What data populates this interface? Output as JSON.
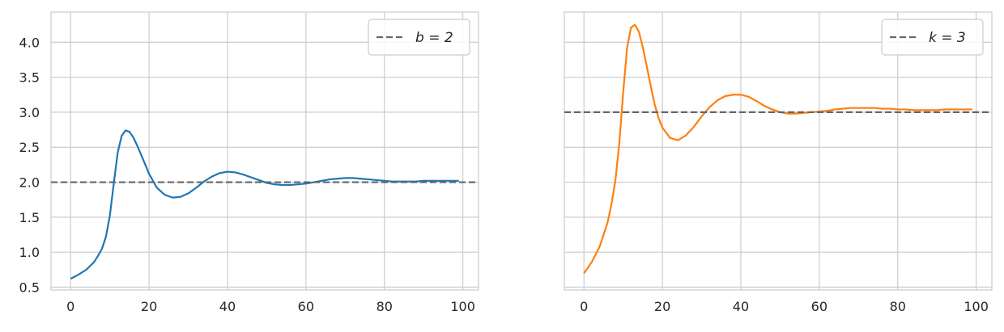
{
  "chart_data": [
    {
      "type": "line",
      "title": "",
      "xlabel": "",
      "ylabel": "",
      "xlim": [
        -5,
        104
      ],
      "ylim": [
        0.46,
        4.43
      ],
      "xticks": [
        0,
        20,
        40,
        60,
        80,
        100
      ],
      "yticks": [
        0.5,
        1.0,
        1.5,
        2.0,
        2.5,
        3.0,
        3.5,
        4.0
      ],
      "xtick_labels": [
        "0",
        "20",
        "40",
        "60",
        "80",
        "100"
      ],
      "ytick_labels": [
        "0.5",
        "1.0",
        "1.5",
        "2.0",
        "2.5",
        "3.0",
        "3.5",
        "4.0"
      ],
      "grid": true,
      "legend_position": "top-right",
      "series": [
        {
          "color": "#1f77b4",
          "x": [
            0,
            2,
            4,
            6,
            7,
            8,
            9,
            10,
            11,
            12,
            13,
            14,
            15,
            16,
            17,
            18,
            20,
            22,
            24,
            26,
            28,
            30,
            32,
            34,
            36,
            38,
            40,
            42,
            44,
            46,
            48,
            50,
            52,
            54,
            56,
            58,
            60,
            62,
            64,
            66,
            68,
            70,
            72,
            74,
            76,
            78,
            80,
            82,
            84,
            86,
            88,
            90,
            92,
            94,
            96,
            99
          ],
          "y": [
            0.62,
            0.68,
            0.75,
            0.86,
            0.95,
            1.05,
            1.22,
            1.52,
            1.98,
            2.42,
            2.66,
            2.74,
            2.72,
            2.64,
            2.52,
            2.39,
            2.12,
            1.92,
            1.82,
            1.78,
            1.79,
            1.84,
            1.92,
            2.01,
            2.08,
            2.13,
            2.15,
            2.14,
            2.11,
            2.07,
            2.03,
            1.99,
            1.97,
            1.96,
            1.96,
            1.97,
            1.98,
            2.0,
            2.02,
            2.04,
            2.05,
            2.06,
            2.06,
            2.05,
            2.04,
            2.03,
            2.02,
            2.01,
            2.01,
            2.01,
            2.01,
            2.02,
            2.02,
            2.02,
            2.02,
            2.02
          ]
        },
        {
          "name": "$b = 2$",
          "display_name": "b = 2",
          "style": "dashed",
          "color": "#666666",
          "x": [
            -5,
            104
          ],
          "y": [
            2.0,
            2.0
          ]
        }
      ],
      "legend": [
        {
          "label": "b = 2",
          "style": "dashed",
          "color": "#666666"
        }
      ]
    },
    {
      "type": "line",
      "title": "",
      "xlabel": "",
      "ylabel": "",
      "xlim": [
        -5,
        104
      ],
      "ylim": [
        0.46,
        4.43
      ],
      "xticks": [
        0,
        20,
        40,
        60,
        80,
        100
      ],
      "yticks": [
        0.5,
        1.0,
        1.5,
        2.0,
        2.5,
        3.0,
        3.5,
        4.0
      ],
      "xtick_labels": [
        "0",
        "20",
        "40",
        "60",
        "80",
        "100"
      ],
      "ytick_labels": [],
      "shared_y": true,
      "grid": true,
      "legend_position": "top-right",
      "series": [
        {
          "color": "#ff7f0e",
          "x": [
            0,
            2,
            4,
            6,
            7,
            8,
            9,
            10,
            11,
            12,
            13,
            14,
            15,
            16,
            17,
            18,
            19,
            20,
            22,
            24,
            26,
            28,
            30,
            32,
            34,
            36,
            38,
            40,
            42,
            44,
            46,
            48,
            50,
            52,
            54,
            56,
            58,
            60,
            62,
            64,
            66,
            68,
            70,
            72,
            74,
            76,
            78,
            80,
            82,
            84,
            86,
            88,
            90,
            92,
            94,
            96,
            99
          ],
          "y": [
            0.7,
            0.86,
            1.08,
            1.42,
            1.68,
            2.02,
            2.55,
            3.28,
            3.92,
            4.21,
            4.25,
            4.15,
            3.93,
            3.66,
            3.38,
            3.12,
            2.92,
            2.78,
            2.63,
            2.6,
            2.67,
            2.79,
            2.94,
            3.07,
            3.17,
            3.23,
            3.25,
            3.25,
            3.22,
            3.16,
            3.09,
            3.04,
            3.0,
            2.98,
            2.98,
            2.99,
            3.0,
            3.01,
            3.02,
            3.04,
            3.05,
            3.06,
            3.06,
            3.06,
            3.06,
            3.05,
            3.05,
            3.04,
            3.04,
            3.03,
            3.03,
            3.03,
            3.03,
            3.04,
            3.04,
            3.04,
            3.04
          ]
        },
        {
          "name": "$k = 3$",
          "display_name": "k = 3",
          "style": "dashed",
          "color": "#666666",
          "x": [
            -5,
            104
          ],
          "y": [
            3.0,
            3.0
          ]
        }
      ],
      "legend": [
        {
          "label": "k = 3",
          "style": "dashed",
          "color": "#666666"
        }
      ]
    }
  ]
}
